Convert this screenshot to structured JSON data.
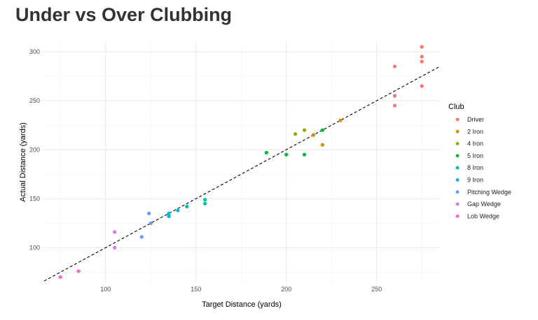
{
  "chart_data": {
    "type": "scatter",
    "title": "Under vs Over Clubbing",
    "xlabel": "Target Distance (yards)",
    "ylabel": "Actual Distance (yards)",
    "xlim": [
      66,
      285
    ],
    "ylim": [
      64,
      310
    ],
    "xticks": [
      100,
      150,
      200,
      250
    ],
    "yticks": [
      100,
      150,
      200,
      250,
      300
    ],
    "grid": true,
    "legend": {
      "title": "Club",
      "position": "right"
    },
    "reference_line": {
      "slope": 1,
      "intercept": 0,
      "style": "dashed",
      "color": "#000000"
    },
    "series": [
      {
        "name": "Driver",
        "color": "#F8766D",
        "points": [
          [
            275,
            305
          ],
          [
            275,
            295
          ],
          [
            275,
            290
          ],
          [
            275,
            265
          ],
          [
            260,
            285
          ],
          [
            260,
            255
          ],
          [
            260,
            245
          ]
        ]
      },
      {
        "name": "2 Iron",
        "color": "#D39200",
        "points": [
          [
            215,
            215
          ],
          [
            220,
            205
          ],
          [
            230,
            230
          ]
        ]
      },
      {
        "name": "4 Iron",
        "color": "#93AA00",
        "points": [
          [
            205,
            216
          ],
          [
            210,
            220
          ]
        ]
      },
      {
        "name": "5 Iron",
        "color": "#00BA38",
        "points": [
          [
            189,
            197
          ],
          [
            200,
            195
          ],
          [
            210,
            195
          ],
          [
            220,
            220
          ]
        ]
      },
      {
        "name": "8 Iron",
        "color": "#00C19F",
        "points": [
          [
            145,
            142
          ],
          [
            155,
            149
          ],
          [
            155,
            145
          ]
        ]
      },
      {
        "name": "9 Iron",
        "color": "#00B9E3",
        "points": [
          [
            135,
            135
          ],
          [
            135,
            134
          ],
          [
            135,
            132
          ],
          [
            140,
            138
          ]
        ]
      },
      {
        "name": "Pitching Wedge",
        "color": "#619CFF",
        "points": [
          [
            120,
            111
          ],
          [
            124,
            135
          ],
          [
            125,
            125
          ]
        ]
      },
      {
        "name": "Gap Wedge",
        "color": "#DB72FB",
        "points": [
          [
            105,
            116
          ],
          [
            105,
            100
          ]
        ]
      },
      {
        "name": "Lob Wedge",
        "color": "#FF61C3",
        "points": [
          [
            75,
            70
          ],
          [
            85,
            76
          ]
        ]
      }
    ]
  }
}
